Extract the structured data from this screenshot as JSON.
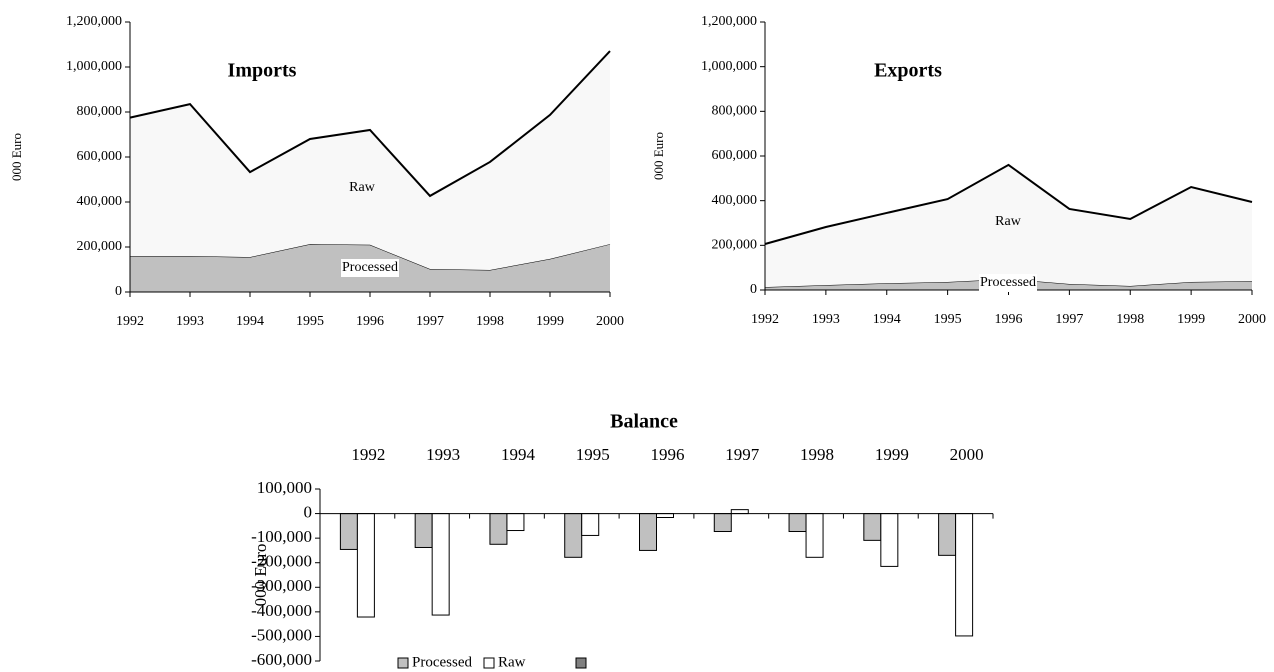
{
  "chart_data": [
    {
      "type": "area",
      "title": "Imports",
      "y_label": "000 Euro",
      "x": [
        1992,
        1993,
        1994,
        1995,
        1996,
        1997,
        1998,
        1999,
        2000
      ],
      "xlim": [
        1992,
        2000
      ],
      "series": [
        {
          "name": "Processed",
          "color": "#c0c0c0",
          "values": [
            160000,
            160000,
            155000,
            213000,
            210000,
            102000,
            98000,
            147000,
            213000
          ]
        },
        {
          "name": "Raw",
          "color": "#f8f8f8",
          "values": [
            615000,
            675000,
            378000,
            467000,
            510000,
            325000,
            480000,
            640000,
            858000
          ]
        }
      ],
      "ylim": [
        0,
        1200000
      ],
      "yticks": [
        0,
        {
          "value": 200000,
          "label": "200,000"
        },
        {
          "value": 400000,
          "label": "400,000"
        },
        {
          "value": 600000,
          "label": "600,000"
        },
        {
          "value": 800000,
          "label": "800,000"
        },
        {
          "value": 1000000,
          "label": "1,000,000"
        },
        {
          "value": 1200000,
          "label": "1,200,000"
        }
      ]
    },
    {
      "type": "area",
      "title": "Exports",
      "y_label": "000 Euro",
      "x": [
        1992,
        1993,
        1994,
        1995,
        1996,
        1997,
        1998,
        1999,
        2000
      ],
      "xlim": [
        1992,
        2000
      ],
      "series": [
        {
          "name": "Processed",
          "color": "#c0c0c0",
          "values": [
            13000,
            22000,
            30000,
            36000,
            49000,
            27000,
            18000,
            36000,
            40000
          ]
        },
        {
          "name": "Raw",
          "color": "#f8f8f8",
          "values": [
            193000,
            260000,
            315000,
            371000,
            511000,
            336000,
            300000,
            425000,
            354000
          ]
        }
      ],
      "ylim": [
        0,
        1200000
      ],
      "yticks": [
        0,
        {
          "value": 200000,
          "label": "200,000"
        },
        {
          "value": 400000,
          "label": "400,000"
        },
        {
          "value": 600000,
          "label": "600,000"
        },
        {
          "value": 800000,
          "label": "800,000"
        },
        {
          "value": 1000000,
          "label": "1,000,000"
        },
        {
          "value": 1200000,
          "label": "1,200,000"
        }
      ]
    },
    {
      "type": "bar",
      "title": "Balance",
      "y_label": "000 Euro",
      "categories": [
        "1992",
        "1993",
        "1994",
        "1995",
        "1996",
        "1997",
        "1998",
        "1999",
        "2000"
      ],
      "series": [
        {
          "name": "Processed",
          "color": "#c0c0c0",
          "values": [
            -146000,
            -138000,
            -125000,
            -178000,
            -150000,
            -73000,
            -73000,
            -109000,
            -170000
          ]
        },
        {
          "name": "Raw",
          "color": "#ffffff",
          "values": [
            -421000,
            -413000,
            -69000,
            -89000,
            -16000,
            16000,
            -178000,
            -215000,
            -498000
          ]
        }
      ],
      "ylim": [
        -600000,
        100000
      ],
      "yticks": [
        {
          "value": -600000,
          "label": "-600,000"
        },
        {
          "value": -500000,
          "label": "-500,000"
        },
        {
          "value": -400000,
          "label": "-400,000"
        },
        {
          "value": -300000,
          "label": "-300,000"
        },
        {
          "value": -200000,
          "label": "-200,000"
        },
        {
          "value": -100000,
          "label": "-100,000"
        },
        0,
        {
          "value": 100000,
          "label": "100,000"
        }
      ],
      "legend": "bottom"
    }
  ]
}
